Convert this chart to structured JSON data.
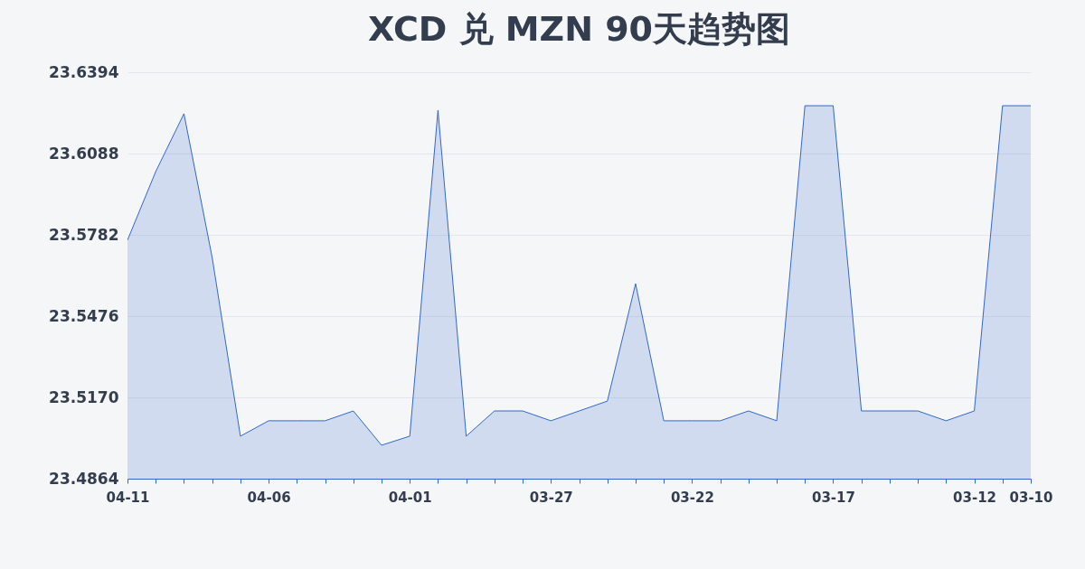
{
  "chart_data": {
    "type": "area",
    "title": "XCD 兑 MZN 90天趋势图",
    "categories": [
      "04-11",
      null,
      null,
      null,
      null,
      "04-06",
      null,
      null,
      null,
      null,
      "04-01",
      null,
      null,
      null,
      null,
      "03-27",
      null,
      null,
      null,
      null,
      "03-22",
      null,
      null,
      null,
      null,
      "03-17",
      null,
      null,
      null,
      null,
      "03-12",
      null,
      "03-10"
    ],
    "series": [
      {
        "color": "#3366cc",
        "values": [
          23.5762,
          23.602,
          23.6238,
          23.5697,
          23.5024,
          23.5082,
          23.5082,
          23.5082,
          23.5119,
          23.499,
          23.5024,
          23.6251,
          23.5024,
          23.5119,
          23.5119,
          23.5082,
          23.5119,
          23.5156,
          23.5598,
          23.5082,
          23.5082,
          23.5082,
          23.5119,
          23.5082,
          23.6268,
          23.6268,
          23.5119,
          23.5119,
          23.5119,
          23.5082,
          23.5119,
          23.6268,
          23.6268
        ]
      }
    ],
    "ylim": [
      23.4864,
      23.6394
    ],
    "yticks": [
      23.4864,
      {
        "value": 23.517,
        "label": "23.5170"
      },
      23.5476,
      23.5782,
      23.6088,
      23.6394
    ],
    "grid": "y",
    "legend": false
  }
}
